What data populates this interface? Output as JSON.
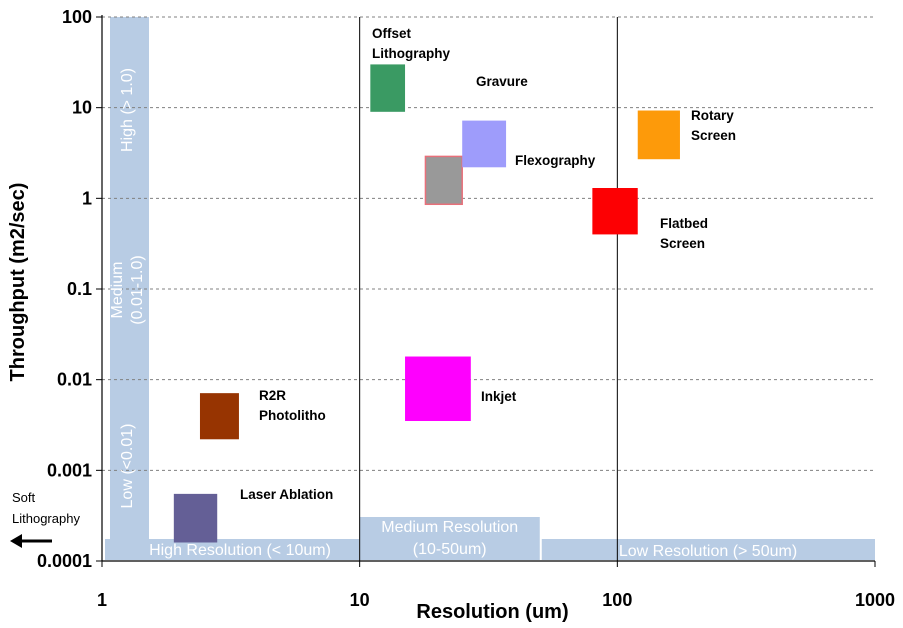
{
  "chart_data": {
    "type": "scatter",
    "xlabel": "Resolution (um)",
    "ylabel": "Throughput (m2/sec)",
    "x_scale": "log",
    "y_scale": "log",
    "xlim": [
      1,
      1000
    ],
    "ylim": [
      0.0001,
      100
    ],
    "x_ticks": [
      "1",
      "10",
      "100",
      "1000"
    ],
    "y_ticks": [
      "0.0001",
      "0.001",
      "0.01",
      "0.1",
      "1",
      "10",
      "100"
    ],
    "grid": "horizontal dashed",
    "vertical_lines": [
      10,
      100
    ],
    "boxes": [
      {
        "label": [
          "Offset",
          "Lithography"
        ],
        "x_range": [
          11,
          15
        ],
        "y_range": [
          9,
          30
        ],
        "color": "#3a9a63"
      },
      {
        "label": [
          "Gravure"
        ],
        "x_range": [
          18,
          25
        ],
        "y_range": [
          0.86,
          2.9
        ],
        "color": "#999999",
        "stroke": "#e8707a"
      },
      {
        "label": [
          "Flexography"
        ],
        "x_range": [
          25,
          37
        ],
        "y_range": [
          2.2,
          7.2
        ],
        "color": "#9e9cfb"
      },
      {
        "label": [
          "Rotary",
          "Screen"
        ],
        "x_range": [
          120,
          175
        ],
        "y_range": [
          2.7,
          9.3
        ],
        "color": "#fd9a0a"
      },
      {
        "label": [
          "Flatbed",
          "Screen"
        ],
        "x_range": [
          80,
          120
        ],
        "y_range": [
          0.4,
          1.3
        ],
        "color": "#fd0003"
      },
      {
        "label": [
          "Inkjet"
        ],
        "x_range": [
          15,
          27
        ],
        "y_range": [
          0.0035,
          0.018
        ],
        "color": "#fe00fe"
      },
      {
        "label": [
          "R2R",
          "Photolitho"
        ],
        "x_range": [
          2.4,
          3.4
        ],
        "y_range": [
          0.0022,
          0.0071
        ],
        "color": "#973401"
      },
      {
        "label": [
          "Laser Ablation"
        ],
        "x_range": [
          1.9,
          2.8
        ],
        "y_range": [
          0.00016,
          0.00055
        ],
        "color": "#645f96"
      }
    ],
    "bands": [
      {
        "label": "High (> 1.0)",
        "axis": "y",
        "y_range": [
          1,
          100
        ]
      },
      {
        "label": "Medium (0.01-1.0)",
        "axis": "y",
        "y_range": [
          0.01,
          1
        ]
      },
      {
        "label": "Low (<0.01)",
        "axis": "y",
        "y_range": [
          0.0001,
          0.01
        ]
      },
      {
        "label": "High Resolution (< 10um)",
        "axis": "x",
        "x_range": [
          1,
          10
        ]
      },
      {
        "label": "Medium Resolution (10-50um)",
        "axis": "x",
        "x_range": [
          10,
          50
        ]
      },
      {
        "label": "Low Resolution (> 50um)",
        "axis": "x",
        "x_range": [
          50,
          1000
        ]
      }
    ],
    "annotations": [
      {
        "text": "Soft",
        "text2": "Lithography",
        "arrow": "left"
      }
    ],
    "band_color": "#b8cce4"
  }
}
